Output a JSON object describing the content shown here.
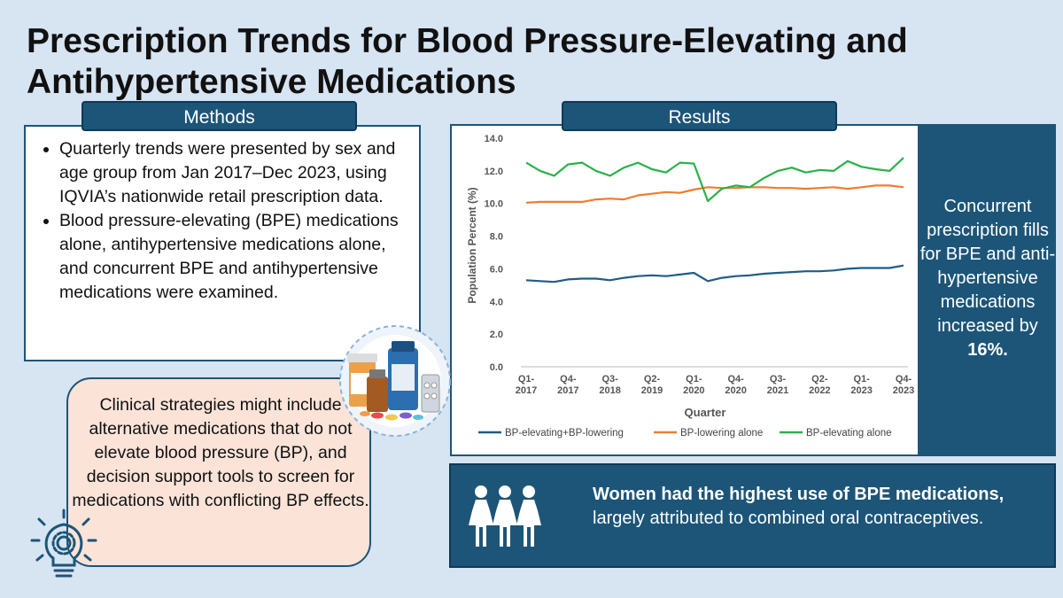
{
  "title": "Prescription Trends for Blood Pressure-Elevating and Antihypertensive Medications",
  "methods": {
    "tab_label": "Methods",
    "bullets": [
      "Quarterly trends were presented by sex and age group from Jan 2017–Dec 2023, using IQVIA’s nationwide retail prescription data.",
      "Blood pressure-elevating (BPE) medications alone, antihypertensive medications alone, and concurrent BPE and antihypertensive medications were examined."
    ]
  },
  "strategy": {
    "text": "Clinical strategies might include alternative medications that do not elevate blood pressure (BP), and decision support tools to screen for medications with conflicting BP effects."
  },
  "results": {
    "tab_label": "Results",
    "stat_text": "Concurrent prescription fills for BPE and anti-hypertensive medications increased by",
    "stat_value": "16%."
  },
  "women": {
    "bold_text": "Women had the highest use of BPE medications,",
    "rest_text": " largely attributed to combined oral contraceptives."
  },
  "colors": {
    "navy": "#1d5578",
    "series_combined": "#1f5c87",
    "series_lowering": "#ed7d31",
    "series_elevating": "#2ab24a"
  },
  "chart_data": {
    "type": "line",
    "xlabel": "Quarter",
    "ylabel": "Population Percent (%)",
    "ylim": [
      0,
      14
    ],
    "yticks": [
      "0.0",
      "2.0",
      "4.0",
      "6.0",
      "8.0",
      "10.0",
      "12.0",
      "14.0"
    ],
    "xtick_labels": [
      {
        "index": 0,
        "label": [
          "Q1-",
          "2017"
        ]
      },
      {
        "index": 3,
        "label": [
          "Q4-",
          "2017"
        ]
      },
      {
        "index": 6,
        "label": [
          "Q3-",
          "2018"
        ]
      },
      {
        "index": 9,
        "label": [
          "Q2-",
          "2019"
        ]
      },
      {
        "index": 12,
        "label": [
          "Q1-",
          "2020"
        ]
      },
      {
        "index": 15,
        "label": [
          "Q4-",
          "2020"
        ]
      },
      {
        "index": 18,
        "label": [
          "Q3-",
          "2021"
        ]
      },
      {
        "index": 21,
        "label": [
          "Q2-",
          "2022"
        ]
      },
      {
        "index": 24,
        "label": [
          "Q1-",
          "2023"
        ]
      },
      {
        "index": 27,
        "label": [
          "Q4-",
          "2023"
        ]
      }
    ],
    "n_points": 28,
    "series": [
      {
        "name": "BP-elevating+BP-lowering",
        "color": "#1f5c87",
        "values": [
          5.3,
          5.25,
          5.2,
          5.35,
          5.4,
          5.4,
          5.3,
          5.45,
          5.55,
          5.6,
          5.55,
          5.65,
          5.75,
          5.25,
          5.45,
          5.55,
          5.6,
          5.7,
          5.75,
          5.8,
          5.85,
          5.85,
          5.9,
          6.0,
          6.05,
          6.05,
          6.05,
          6.2
        ]
      },
      {
        "name": "BP-lowering alone",
        "color": "#ed7d31",
        "values": [
          10.05,
          10.1,
          10.1,
          10.1,
          10.1,
          10.25,
          10.3,
          10.25,
          10.5,
          10.6,
          10.7,
          10.65,
          10.85,
          11.0,
          10.95,
          10.95,
          11.0,
          11.0,
          10.95,
          10.95,
          10.9,
          10.95,
          11.0,
          10.9,
          11.0,
          11.1,
          11.1,
          11.0
        ]
      },
      {
        "name": "BP-elevating alone",
        "color": "#2ab24a",
        "values": [
          12.5,
          12.0,
          11.7,
          12.4,
          12.5,
          12.0,
          11.7,
          12.2,
          12.5,
          12.1,
          11.9,
          12.5,
          12.45,
          10.15,
          10.9,
          11.1,
          11.0,
          11.55,
          12.0,
          12.2,
          11.9,
          12.05,
          12.0,
          12.6,
          12.25,
          12.1,
          12.0,
          12.8
        ]
      }
    ],
    "legend": "bottom"
  }
}
